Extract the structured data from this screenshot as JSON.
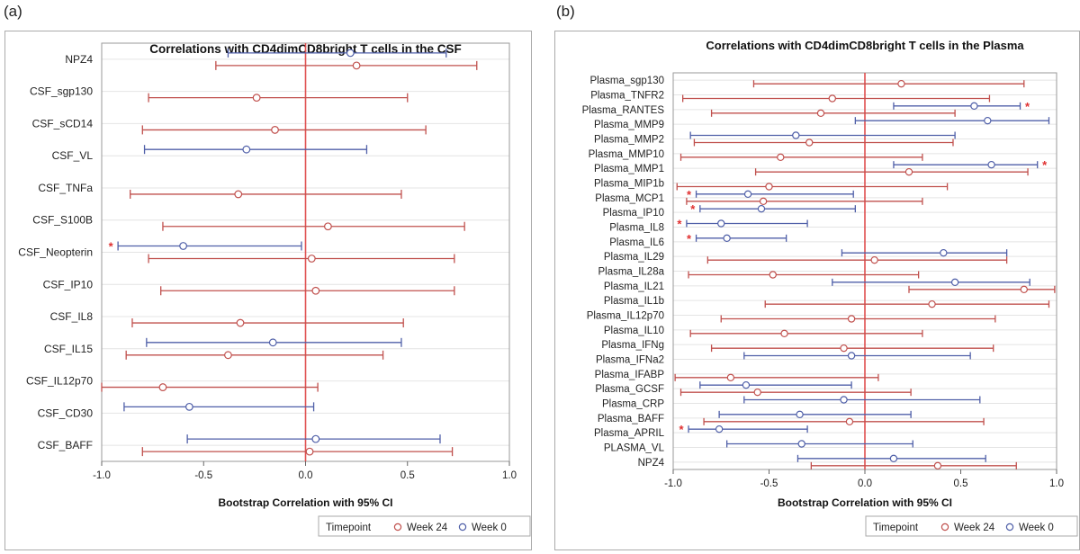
{
  "panels": [
    {
      "letter": "(a)"
    },
    {
      "letter": "(b)"
    }
  ],
  "colors": {
    "week24": "#c0504d",
    "week0": "#4f5fa8",
    "zero_line": "#e05050",
    "star": "#e03030",
    "grid": "#e4e4e4"
  },
  "chart_data": [
    {
      "type": "forest",
      "title": "Correlations with CD4dimCD8bright T cells in the CSF",
      "xlabel": "Bootstrap Correlation with 95% CI",
      "ylabel": "",
      "xlim": [
        -1.0,
        1.0
      ],
      "xticks": [
        -1.0,
        -0.5,
        0.0,
        0.5,
        1.0
      ],
      "xtick_labels": [
        "-1.0",
        "-0.5",
        "0.0",
        "0.5",
        "1.0"
      ],
      "legend": {
        "title": "Timepoint",
        "entries": [
          "Week 24",
          "Week 0"
        ],
        "position": "bottom-right"
      },
      "categories": [
        "NPZ4",
        "CSF_sgp130",
        "CSF_sCD14",
        "CSF_VL",
        "CSF_TNFa",
        "CSF_S100B",
        "CSF_Neopterin",
        "CSF_IP10",
        "CSF_IL8",
        "CSF_IL15",
        "CSF_IL12p70",
        "CSF_CD30",
        "CSF_BAFF"
      ],
      "significance_marker": "*",
      "series": [
        {
          "name": "Week 0",
          "data": [
            {
              "category": "NPZ4",
              "estimate": 0.22,
              "lower": -0.38,
              "upper": 0.69
            },
            {
              "category": "CSF_VL",
              "estimate": -0.29,
              "lower": -0.79,
              "upper": 0.3
            },
            {
              "category": "CSF_Neopterin",
              "estimate": -0.6,
              "lower": -0.92,
              "upper": -0.02,
              "significant": true
            },
            {
              "category": "CSF_IL15",
              "estimate": -0.16,
              "lower": -0.78,
              "upper": 0.47
            },
            {
              "category": "CSF_CD30",
              "estimate": -0.57,
              "lower": -0.89,
              "upper": 0.04
            },
            {
              "category": "CSF_BAFF",
              "estimate": 0.05,
              "lower": -0.58,
              "upper": 0.66
            }
          ]
        },
        {
          "name": "Week 24",
          "data": [
            {
              "category": "NPZ4",
              "estimate": 0.25,
              "lower": -0.44,
              "upper": 0.84
            },
            {
              "category": "CSF_sgp130",
              "estimate": -0.24,
              "lower": -0.77,
              "upper": 0.5
            },
            {
              "category": "CSF_sCD14",
              "estimate": -0.15,
              "lower": -0.8,
              "upper": 0.59
            },
            {
              "category": "CSF_TNFa",
              "estimate": -0.33,
              "lower": -0.86,
              "upper": 0.47
            },
            {
              "category": "CSF_S100B",
              "estimate": 0.11,
              "lower": -0.7,
              "upper": 0.78
            },
            {
              "category": "CSF_Neopterin",
              "estimate": 0.03,
              "lower": -0.77,
              "upper": 0.73
            },
            {
              "category": "CSF_IP10",
              "estimate": 0.05,
              "lower": -0.71,
              "upper": 0.73
            },
            {
              "category": "CSF_IL8",
              "estimate": -0.32,
              "lower": -0.85,
              "upper": 0.48
            },
            {
              "category": "CSF_IL15",
              "estimate": -0.38,
              "lower": -0.88,
              "upper": 0.38
            },
            {
              "category": "CSF_IL12p70",
              "estimate": -0.7,
              "lower": -1.0,
              "upper": 0.06
            },
            {
              "category": "CSF_BAFF",
              "estimate": 0.02,
              "lower": -0.8,
              "upper": 0.72
            }
          ]
        }
      ]
    },
    {
      "type": "forest",
      "title": "Correlations with CD4dimCD8bright T cells in the Plasma",
      "xlabel": "Bootstrap Correlation with 95% CI",
      "ylabel": "",
      "xlim": [
        -1.0,
        1.0
      ],
      "xticks": [
        -1.0,
        -0.5,
        0.0,
        0.5,
        1.0
      ],
      "xtick_labels": [
        "-1.0",
        "-0.5",
        "0.0",
        "0.5",
        "1.0"
      ],
      "legend": {
        "title": "Timepoint",
        "entries": [
          "Week 24",
          "Week 0"
        ],
        "position": "bottom-right"
      },
      "categories": [
        "Plasma_sgp130",
        "Plasma_TNFR2",
        "Plasma_RANTES",
        "Plasma_MMP9",
        "Plasma_MMP2",
        "Plasma_MMP10",
        "Plasma_MMP1",
        "Plasma_MIP1b",
        "Plasma_MCP1",
        "Plasma_IP10",
        "Plasma_IL8",
        "Plasma_IL6",
        "Plasma_IL29",
        "Plasma_IL28a",
        "Plasma_IL21",
        "Plasma_IL1b",
        "Plasma_IL12p70",
        "Plasma_IL10",
        "Plasma_IFNg",
        "Plasma_IFNa2",
        "Plasma_IFABP",
        "Plasma_GCSF",
        "Plasma_CRP",
        "Plasma_BAFF",
        "Plasma_APRIL",
        "PLASMA_VL",
        "NPZ4"
      ],
      "significance_marker": "*",
      "series": [
        {
          "name": "Week 0",
          "data": [
            {
              "category": "Plasma_RANTES",
              "estimate": 0.57,
              "lower": 0.15,
              "upper": 0.81,
              "significant": true
            },
            {
              "category": "Plasma_MMP9",
              "estimate": 0.64,
              "lower": -0.05,
              "upper": 0.96
            },
            {
              "category": "Plasma_MMP2",
              "estimate": -0.36,
              "lower": -0.91,
              "upper": 0.47
            },
            {
              "category": "Plasma_MMP1",
              "estimate": 0.66,
              "lower": 0.15,
              "upper": 0.9,
              "significant": true
            },
            {
              "category": "Plasma_MCP1",
              "estimate": -0.61,
              "lower": -0.88,
              "upper": -0.06,
              "significant": true
            },
            {
              "category": "Plasma_IP10",
              "estimate": -0.54,
              "lower": -0.86,
              "upper": -0.05,
              "significant": true
            },
            {
              "category": "Plasma_IL8",
              "estimate": -0.75,
              "lower": -0.93,
              "upper": -0.3,
              "significant": true
            },
            {
              "category": "Plasma_IL6",
              "estimate": -0.72,
              "lower": -0.88,
              "upper": -0.41,
              "significant": true
            },
            {
              "category": "Plasma_IL29",
              "estimate": 0.41,
              "lower": -0.12,
              "upper": 0.74
            },
            {
              "category": "Plasma_IL21",
              "estimate": 0.47,
              "lower": -0.17,
              "upper": 0.86
            },
            {
              "category": "Plasma_IFNa2",
              "estimate": -0.07,
              "lower": -0.63,
              "upper": 0.55
            },
            {
              "category": "Plasma_GCSF",
              "estimate": -0.62,
              "lower": -0.86,
              "upper": -0.07
            },
            {
              "category": "Plasma_CRP",
              "estimate": -0.11,
              "lower": -0.63,
              "upper": 0.6
            },
            {
              "category": "Plasma_BAFF",
              "estimate": -0.34,
              "lower": -0.76,
              "upper": 0.24
            },
            {
              "category": "Plasma_APRIL",
              "estimate": -0.76,
              "lower": -0.92,
              "upper": -0.3,
              "significant": true
            },
            {
              "category": "PLASMA_VL",
              "estimate": -0.33,
              "lower": -0.72,
              "upper": 0.25
            },
            {
              "category": "NPZ4",
              "estimate": 0.15,
              "lower": -0.35,
              "upper": 0.63
            }
          ]
        },
        {
          "name": "Week 24",
          "data": [
            {
              "category": "Plasma_sgp130",
              "estimate": 0.19,
              "lower": -0.58,
              "upper": 0.83
            },
            {
              "category": "Plasma_TNFR2",
              "estimate": -0.17,
              "lower": -0.95,
              "upper": 0.65
            },
            {
              "category": "Plasma_RANTES",
              "estimate": -0.23,
              "lower": -0.8,
              "upper": 0.47
            },
            {
              "category": "Plasma_MMP2",
              "estimate": -0.29,
              "lower": -0.89,
              "upper": 0.46
            },
            {
              "category": "Plasma_MMP10",
              "estimate": -0.44,
              "lower": -0.96,
              "upper": 0.3
            },
            {
              "category": "Plasma_MMP1",
              "estimate": 0.23,
              "lower": -0.57,
              "upper": 0.85
            },
            {
              "category": "Plasma_MIP1b",
              "estimate": -0.5,
              "lower": -0.98,
              "upper": 0.43
            },
            {
              "category": "Plasma_MCP1",
              "estimate": -0.53,
              "lower": -0.93,
              "upper": 0.3
            },
            {
              "category": "Plasma_IL29",
              "estimate": 0.05,
              "lower": -0.82,
              "upper": 0.74
            },
            {
              "category": "Plasma_IL28a",
              "estimate": -0.48,
              "lower": -0.92,
              "upper": 0.28
            },
            {
              "category": "Plasma_IL21",
              "estimate": 0.83,
              "lower": 0.23,
              "upper": 0.99
            },
            {
              "category": "Plasma_IL1b",
              "estimate": 0.35,
              "lower": -0.52,
              "upper": 0.96
            },
            {
              "category": "Plasma_IL12p70",
              "estimate": -0.07,
              "lower": -0.75,
              "upper": 0.68
            },
            {
              "category": "Plasma_IL10",
              "estimate": -0.42,
              "lower": -0.91,
              "upper": 0.3
            },
            {
              "category": "Plasma_IFNg",
              "estimate": -0.11,
              "lower": -0.8,
              "upper": 0.67
            },
            {
              "category": "Plasma_IFABP",
              "estimate": -0.7,
              "lower": -0.99,
              "upper": 0.07
            },
            {
              "category": "Plasma_GCSF",
              "estimate": -0.56,
              "lower": -0.96,
              "upper": 0.24
            },
            {
              "category": "Plasma_BAFF",
              "estimate": -0.08,
              "lower": -0.84,
              "upper": 0.62
            },
            {
              "category": "NPZ4",
              "estimate": 0.38,
              "lower": -0.28,
              "upper": 0.79
            }
          ]
        }
      ]
    }
  ]
}
